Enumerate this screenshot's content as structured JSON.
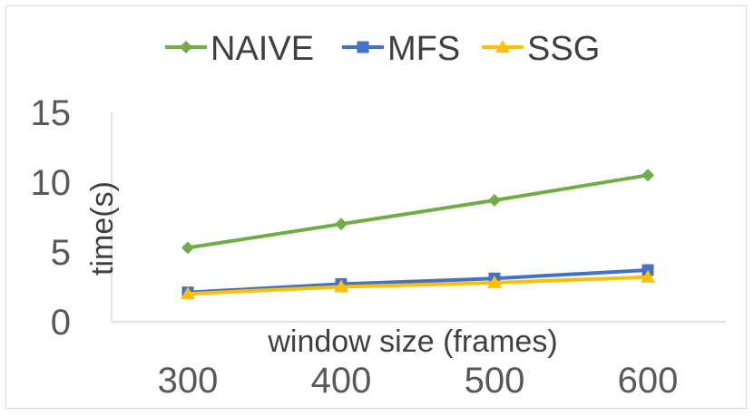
{
  "chart_data": {
    "type": "line",
    "title": "",
    "xlabel": "window size (frames)",
    "ylabel": "time(s)",
    "categories": [
      "300",
      "400",
      "500",
      "600"
    ],
    "ylim": [
      0,
      15
    ],
    "yticks": [
      "0",
      "5",
      "10",
      "15"
    ],
    "grid": false,
    "legend_position": "top",
    "series": [
      {
        "name": "NAIVE",
        "values": [
          5.3,
          7.0,
          8.7,
          10.5
        ],
        "color": "#70ad47",
        "marker": "diamond"
      },
      {
        "name": "MFS",
        "values": [
          2.1,
          2.7,
          3.1,
          3.7
        ],
        "color": "#4472c4",
        "marker": "square"
      },
      {
        "name": "SSG",
        "values": [
          2.0,
          2.5,
          2.8,
          3.2
        ],
        "color": "#ffc000",
        "marker": "triangle"
      }
    ]
  }
}
